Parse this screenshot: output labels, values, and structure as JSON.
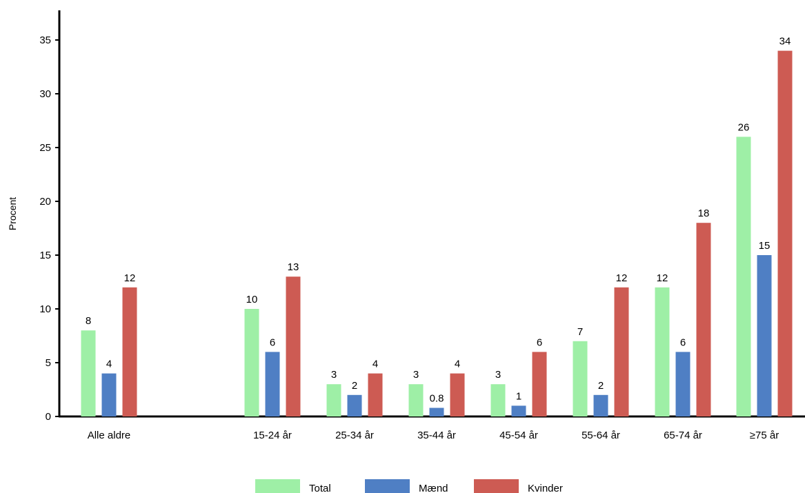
{
  "chart_data": {
    "type": "bar",
    "ylabel": "Procent",
    "ylim": [
      0,
      36
    ],
    "yticks": [
      0,
      5,
      10,
      15,
      20,
      25,
      30,
      35
    ],
    "categories": [
      "Alle aldre",
      "15-24 år",
      "25-34 år",
      "35-44 år",
      "45-54 år",
      "55-64 år",
      "65-74 år",
      "≥75 år"
    ],
    "series": [
      {
        "name": "Total",
        "color": "#9EEFA6",
        "values": [
          8,
          10,
          3,
          3,
          3,
          7,
          12,
          26
        ],
        "labels": [
          "8",
          "10",
          "3",
          "3",
          "3",
          "7",
          "12",
          "26"
        ]
      },
      {
        "name": "Mænd",
        "color": "#4F7FC4",
        "values": [
          4,
          6,
          2,
          0.8,
          1,
          2,
          6,
          15
        ],
        "labels": [
          "4",
          "6",
          "2",
          "0.8",
          "1",
          "2",
          "6",
          "15"
        ]
      },
      {
        "name": "Kvinder",
        "color": "#CD5B53",
        "values": [
          12,
          13,
          4,
          4,
          6,
          12,
          18,
          34
        ],
        "labels": [
          "12",
          "13",
          "4",
          "4",
          "6",
          "12",
          "18",
          "34"
        ]
      }
    ],
    "legend_position": "bottom-center",
    "grid": false
  }
}
